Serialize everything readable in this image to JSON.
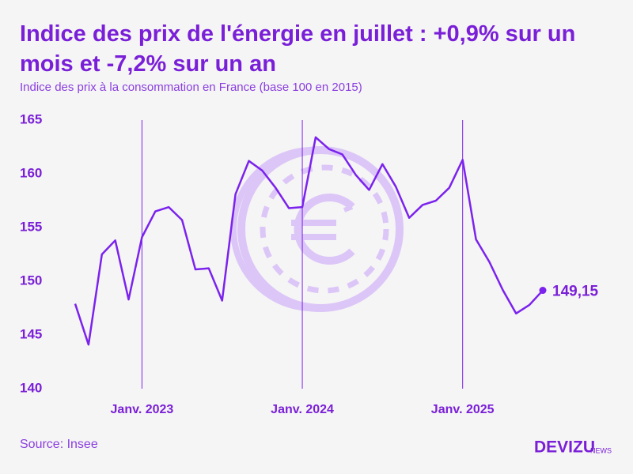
{
  "chart_data": {
    "type": "line",
    "title": "Indice des prix de l'énergie en juillet : +0,9% sur un mois et -7,2% sur un an",
    "subtitle": "Indice des prix à la consommation en France (base 100 en 2015)",
    "source": "Source: Insee",
    "brand": "DEVIZU",
    "brand_suffix": "NEWS",
    "categories": [
      null,
      null,
      null,
      null,
      null,
      "Janv. 2023",
      null,
      null,
      null,
      null,
      null,
      null,
      null,
      null,
      null,
      null,
      null,
      "Janv. 2024",
      null,
      null,
      null,
      null,
      null,
      null,
      null,
      null,
      null,
      null,
      null,
      "Janv. 2025",
      null,
      null,
      null,
      null,
      null,
      null
    ],
    "values": [
      147.9,
      144.1,
      152.5,
      153.8,
      148.3,
      154.1,
      156.5,
      156.9,
      155.7,
      151.1,
      151.2,
      148.2,
      158.1,
      161.2,
      160.3,
      158.7,
      156.8,
      156.9,
      163.4,
      162.3,
      161.8,
      159.9,
      158.5,
      160.9,
      158.8,
      155.9,
      157.1,
      157.5,
      158.7,
      161.3,
      153.9,
      151.8,
      149.2,
      147.0,
      147.8,
      149.15
    ],
    "value_labels": [
      null,
      null,
      null,
      null,
      null,
      null,
      null,
      null,
      null,
      null,
      null,
      null,
      null,
      null,
      null,
      null,
      null,
      null,
      null,
      null,
      null,
      null,
      null,
      null,
      null,
      null,
      null,
      null,
      null,
      null,
      null,
      null,
      null,
      null,
      null,
      "149,15"
    ],
    "color": "#7b22ee",
    "ylim": [
      140,
      165
    ],
    "yticks": [
      140,
      145,
      150,
      155,
      160,
      165
    ],
    "grid": false
  }
}
